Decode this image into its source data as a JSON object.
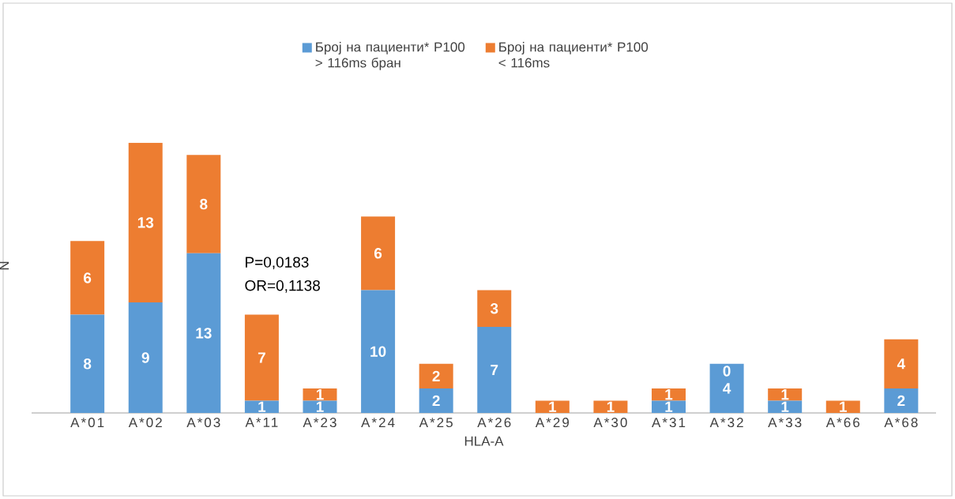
{
  "chart_data": {
    "type": "bar",
    "stacked": true,
    "xlabel": "HLA-A",
    "ylabel": "N",
    "categories": [
      "A*01",
      "A*02",
      "A*03",
      "A*11",
      "A*23",
      "A*24",
      "A*25",
      "A*26",
      "A*29",
      "A*30",
      "A*31",
      "A*32",
      "A*33",
      "A*66",
      "A*68"
    ],
    "series": [
      {
        "name": "Број на пациенти* P100 > 116ms бран",
        "color": "#5b9bd5",
        "values": [
          8,
          9,
          13,
          1,
          1,
          10,
          2,
          7,
          0,
          0,
          1,
          4,
          1,
          0,
          2
        ],
        "value_labels": [
          "8",
          "9",
          "13",
          "1",
          "1",
          "10",
          "2",
          "7",
          null,
          null,
          "1",
          "4",
          "1",
          null,
          "2"
        ]
      },
      {
        "name": "Број на пациенти* P100 < 116ms",
        "color": "#ed7d31",
        "values": [
          6,
          13,
          8,
          7,
          1,
          6,
          2,
          3,
          1,
          1,
          1,
          0,
          1,
          1,
          4
        ],
        "value_labels": [
          "6",
          "13",
          "8",
          "7",
          "1",
          "6",
          "2",
          "3",
          "1",
          "1",
          "1",
          "0",
          "1",
          "1",
          "4"
        ]
      }
    ],
    "legend": "top",
    "grid": false,
    "annotations": [
      "P=0,0183",
      "OR=0,1138"
    ]
  }
}
